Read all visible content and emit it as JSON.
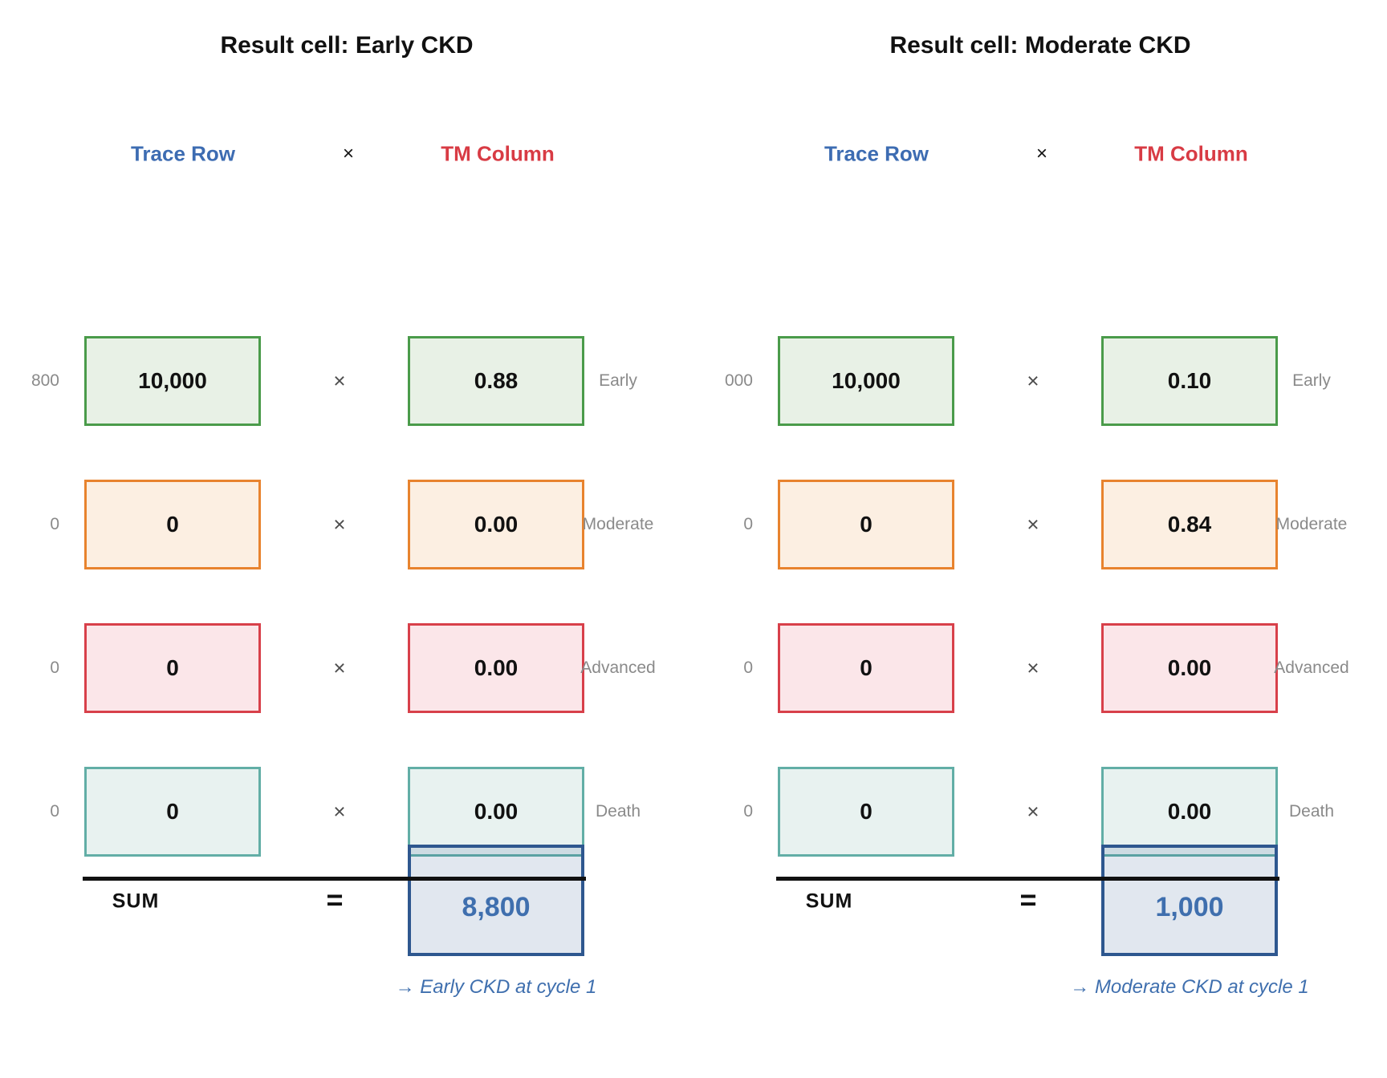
{
  "colors": {
    "early_border": "#4a9b4a",
    "early_fill": "#e8f1e6",
    "moderate_border": "#e8832e",
    "moderate_fill": "#fcefe2",
    "advanced_border": "#d8404a",
    "advanced_fill": "#fbe6e9",
    "death_border": "#62aea6",
    "death_fill": "#e8f2f0",
    "result_border": "#2e578f",
    "result_fill_tint": "rgba(46,87,143,0.14)",
    "result_text": "#3f6fae",
    "trace_header_text": "#3d6cb2",
    "tm_header_text": "#d83b44",
    "side_label_text": "#8a8a8a",
    "sum_line": "#111111"
  },
  "panels": [
    {
      "title": "Result cell: Early CKD",
      "headers": {
        "trace": "Trace Row",
        "times": "×",
        "tm": "TM Column"
      },
      "rows": [
        {
          "side_label": "800",
          "trace": "10,000",
          "times": "×",
          "tm": "0.88",
          "state": "Early"
        },
        {
          "side_label": "0",
          "trace": "0",
          "times": "×",
          "tm": "0.00",
          "state": "Moderate"
        },
        {
          "side_label": "0",
          "trace": "0",
          "times": "×",
          "tm": "0.00",
          "state": "Advanced"
        },
        {
          "side_label": "0",
          "trace": "0",
          "times": "×",
          "tm": "0.00",
          "state": "Death"
        }
      ],
      "sum": {
        "label": "SUM",
        "equals": "=",
        "value": "8,800"
      },
      "annotation": "→ Early CKD at cycle 1"
    },
    {
      "title": "Result cell: Moderate CKD",
      "headers": {
        "trace": "Trace Row",
        "times": "×",
        "tm": "TM Column"
      },
      "rows": [
        {
          "side_label": "000",
          "trace": "10,000",
          "times": "×",
          "tm": "0.10",
          "state": "Early"
        },
        {
          "side_label": "0",
          "trace": "0",
          "times": "×",
          "tm": "0.84",
          "state": "Moderate"
        },
        {
          "side_label": "0",
          "trace": "0",
          "times": "×",
          "tm": "0.00",
          "state": "Advanced"
        },
        {
          "side_label": "0",
          "trace": "0",
          "times": "×",
          "tm": "0.00",
          "state": "Death"
        }
      ],
      "sum": {
        "label": "SUM",
        "equals": "=",
        "value": "1,000"
      },
      "annotation": "→ Moderate CKD at cycle 1"
    }
  ]
}
